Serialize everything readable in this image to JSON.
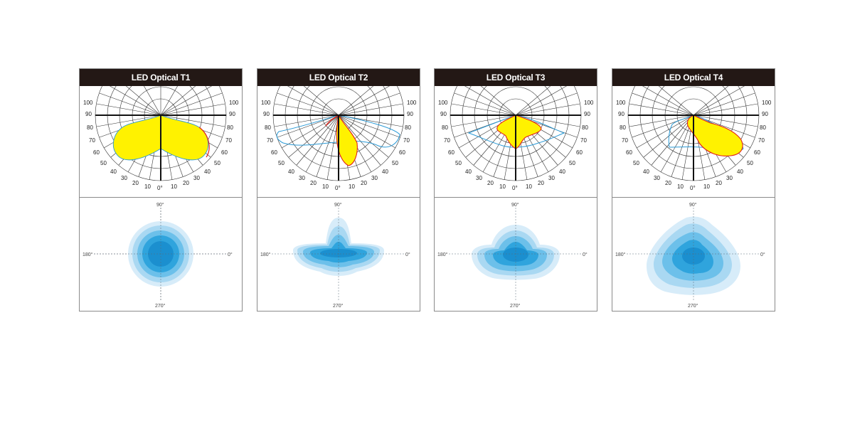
{
  "panels": [
    {
      "title": "LED Optical T1",
      "polar": {
        "ticks_left": [
          "100",
          "90",
          "80",
          "70",
          "60",
          "50",
          "40",
          "30",
          "20",
          "10",
          "0°"
        ],
        "ticks_right": [
          "100",
          "90",
          "80",
          "70",
          "60",
          "50",
          "40",
          "30",
          "20",
          "10"
        ]
      },
      "iso": {
        "label_top": "90°",
        "label_bottom": "270°",
        "label_left": "180°",
        "label_right": "0°"
      }
    },
    {
      "title": "LED Optical T2",
      "polar": {
        "ticks_left": [
          "100",
          "90",
          "80",
          "70",
          "60",
          "50",
          "40",
          "30",
          "20",
          "10",
          "0°"
        ],
        "ticks_right": [
          "100",
          "90",
          "80",
          "70",
          "60",
          "50",
          "40",
          "30",
          "20",
          "10"
        ]
      },
      "iso": {
        "label_top": "90°",
        "label_bottom": "270°",
        "label_left": "180°",
        "label_right": "0°"
      }
    },
    {
      "title": "LED Optical T3",
      "polar": {
        "ticks_left": [
          "100",
          "90",
          "80",
          "70",
          "60",
          "50",
          "40",
          "30",
          "20",
          "10",
          "0°"
        ],
        "ticks_right": [
          "100",
          "90",
          "80",
          "70",
          "60",
          "50",
          "40",
          "30",
          "20",
          "10"
        ]
      },
      "iso": {
        "label_top": "90°",
        "label_bottom": "270°",
        "label_left": "180°",
        "label_right": "0°"
      }
    },
    {
      "title": "LED Optical T4",
      "polar": {
        "ticks_left": [
          "100",
          "90",
          "80",
          "70",
          "60",
          "50",
          "40",
          "30",
          "20",
          "10",
          "0°"
        ],
        "ticks_right": [
          "100",
          "90",
          "80",
          "70",
          "60",
          "50",
          "40",
          "30",
          "20",
          "10"
        ]
      },
      "iso": {
        "label_top": "90°",
        "label_bottom": "270°",
        "label_left": "180°",
        "label_right": "0°"
      }
    }
  ],
  "colors": {
    "header_bg": "#231815",
    "yellow_fill": "#fff200",
    "red_line": "#e2231a",
    "blue_line": "#2b9ad6",
    "iso_scale": [
      "#d7ecf9",
      "#a9d8f2",
      "#6cc0ea",
      "#2fa4dd",
      "#1b8fcf"
    ]
  }
}
